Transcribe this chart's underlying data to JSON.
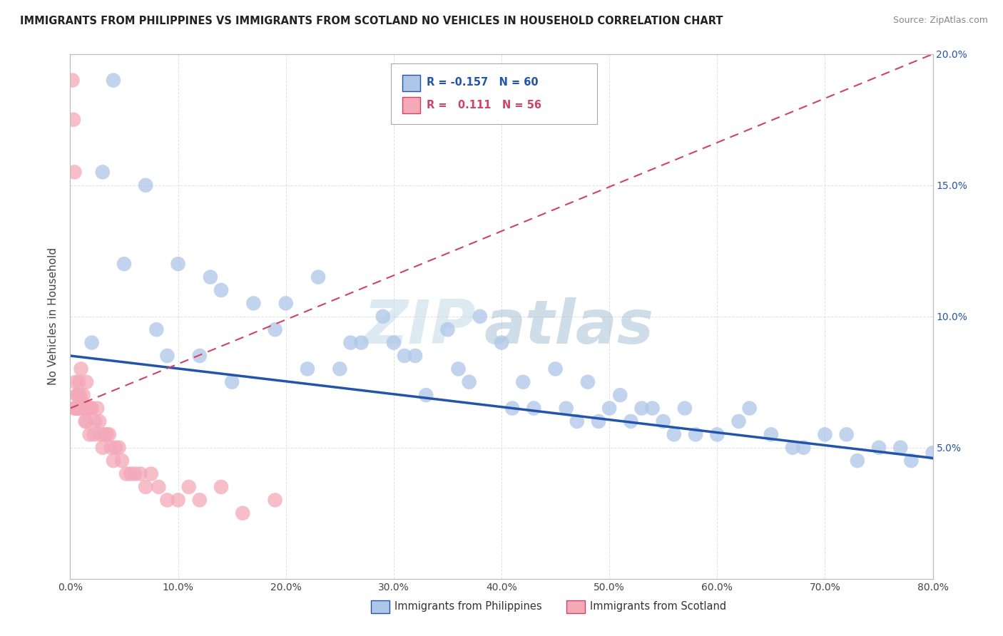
{
  "title": "IMMIGRANTS FROM PHILIPPINES VS IMMIGRANTS FROM SCOTLAND NO VEHICLES IN HOUSEHOLD CORRELATION CHART",
  "source": "Source: ZipAtlas.com",
  "xlabel_philippines": "Immigrants from Philippines",
  "xlabel_scotland": "Immigrants from Scotland",
  "ylabel": "No Vehicles in Household",
  "watermark_zip": "ZIP",
  "watermark_atlas": "atlas",
  "xlim": [
    0.0,
    0.8
  ],
  "ylim": [
    0.0,
    0.2
  ],
  "xticks": [
    0.0,
    0.1,
    0.2,
    0.3,
    0.4,
    0.5,
    0.6,
    0.7,
    0.8
  ],
  "yticks": [
    0.0,
    0.05,
    0.1,
    0.15,
    0.2
  ],
  "R_philippines": -0.157,
  "N_philippines": 60,
  "R_scotland": 0.111,
  "N_scotland": 56,
  "color_philippines": "#aec6e8",
  "color_scotland": "#f4a8b8",
  "line_color_philippines": "#2255aa",
  "line_color_scotland": "#cc4466",
  "phil_trend_x0": 0.0,
  "phil_trend_y0": 0.085,
  "phil_trend_x1": 0.8,
  "phil_trend_y1": 0.046,
  "scot_trend_x0": 0.0,
  "scot_trend_y0": 0.065,
  "scot_trend_x1": 0.8,
  "scot_trend_y1": 0.2,
  "background_color": "#ffffff",
  "grid_color": "#cccccc",
  "philippines_x": [
    0.02,
    0.04,
    0.03,
    0.05,
    0.07,
    0.08,
    0.09,
    0.1,
    0.12,
    0.13,
    0.14,
    0.15,
    0.17,
    0.19,
    0.2,
    0.22,
    0.23,
    0.25,
    0.26,
    0.27,
    0.29,
    0.3,
    0.31,
    0.32,
    0.33,
    0.35,
    0.36,
    0.37,
    0.38,
    0.4,
    0.41,
    0.42,
    0.43,
    0.45,
    0.46,
    0.47,
    0.48,
    0.49,
    0.5,
    0.51,
    0.52,
    0.53,
    0.54,
    0.55,
    0.56,
    0.57,
    0.58,
    0.6,
    0.62,
    0.63,
    0.65,
    0.67,
    0.68,
    0.7,
    0.72,
    0.73,
    0.75,
    0.77,
    0.78,
    0.8
  ],
  "philippines_y": [
    0.09,
    0.19,
    0.155,
    0.12,
    0.15,
    0.095,
    0.085,
    0.12,
    0.085,
    0.115,
    0.11,
    0.075,
    0.105,
    0.095,
    0.105,
    0.08,
    0.115,
    0.08,
    0.09,
    0.09,
    0.1,
    0.09,
    0.085,
    0.085,
    0.07,
    0.095,
    0.08,
    0.075,
    0.1,
    0.09,
    0.065,
    0.075,
    0.065,
    0.08,
    0.065,
    0.06,
    0.075,
    0.06,
    0.065,
    0.07,
    0.06,
    0.065,
    0.065,
    0.06,
    0.055,
    0.065,
    0.055,
    0.055,
    0.06,
    0.065,
    0.055,
    0.05,
    0.05,
    0.055,
    0.055,
    0.045,
    0.05,
    0.05,
    0.045,
    0.048
  ],
  "scotland_x": [
    0.002,
    0.003,
    0.004,
    0.004,
    0.005,
    0.005,
    0.006,
    0.006,
    0.007,
    0.007,
    0.008,
    0.008,
    0.009,
    0.009,
    0.01,
    0.01,
    0.011,
    0.012,
    0.012,
    0.013,
    0.014,
    0.015,
    0.015,
    0.016,
    0.017,
    0.018,
    0.019,
    0.02,
    0.022,
    0.023,
    0.025,
    0.027,
    0.028,
    0.03,
    0.032,
    0.034,
    0.036,
    0.038,
    0.04,
    0.042,
    0.045,
    0.048,
    0.052,
    0.056,
    0.06,
    0.065,
    0.07,
    0.075,
    0.082,
    0.09,
    0.1,
    0.11,
    0.12,
    0.14,
    0.16,
    0.19
  ],
  "scotland_y": [
    0.19,
    0.175,
    0.065,
    0.155,
    0.075,
    0.065,
    0.07,
    0.065,
    0.07,
    0.065,
    0.065,
    0.075,
    0.065,
    0.07,
    0.068,
    0.08,
    0.065,
    0.07,
    0.065,
    0.065,
    0.06,
    0.075,
    0.06,
    0.065,
    0.065,
    0.055,
    0.065,
    0.065,
    0.055,
    0.06,
    0.065,
    0.06,
    0.055,
    0.05,
    0.055,
    0.055,
    0.055,
    0.05,
    0.045,
    0.05,
    0.05,
    0.045,
    0.04,
    0.04,
    0.04,
    0.04,
    0.035,
    0.04,
    0.035,
    0.03,
    0.03,
    0.035,
    0.03,
    0.035,
    0.025,
    0.03
  ]
}
